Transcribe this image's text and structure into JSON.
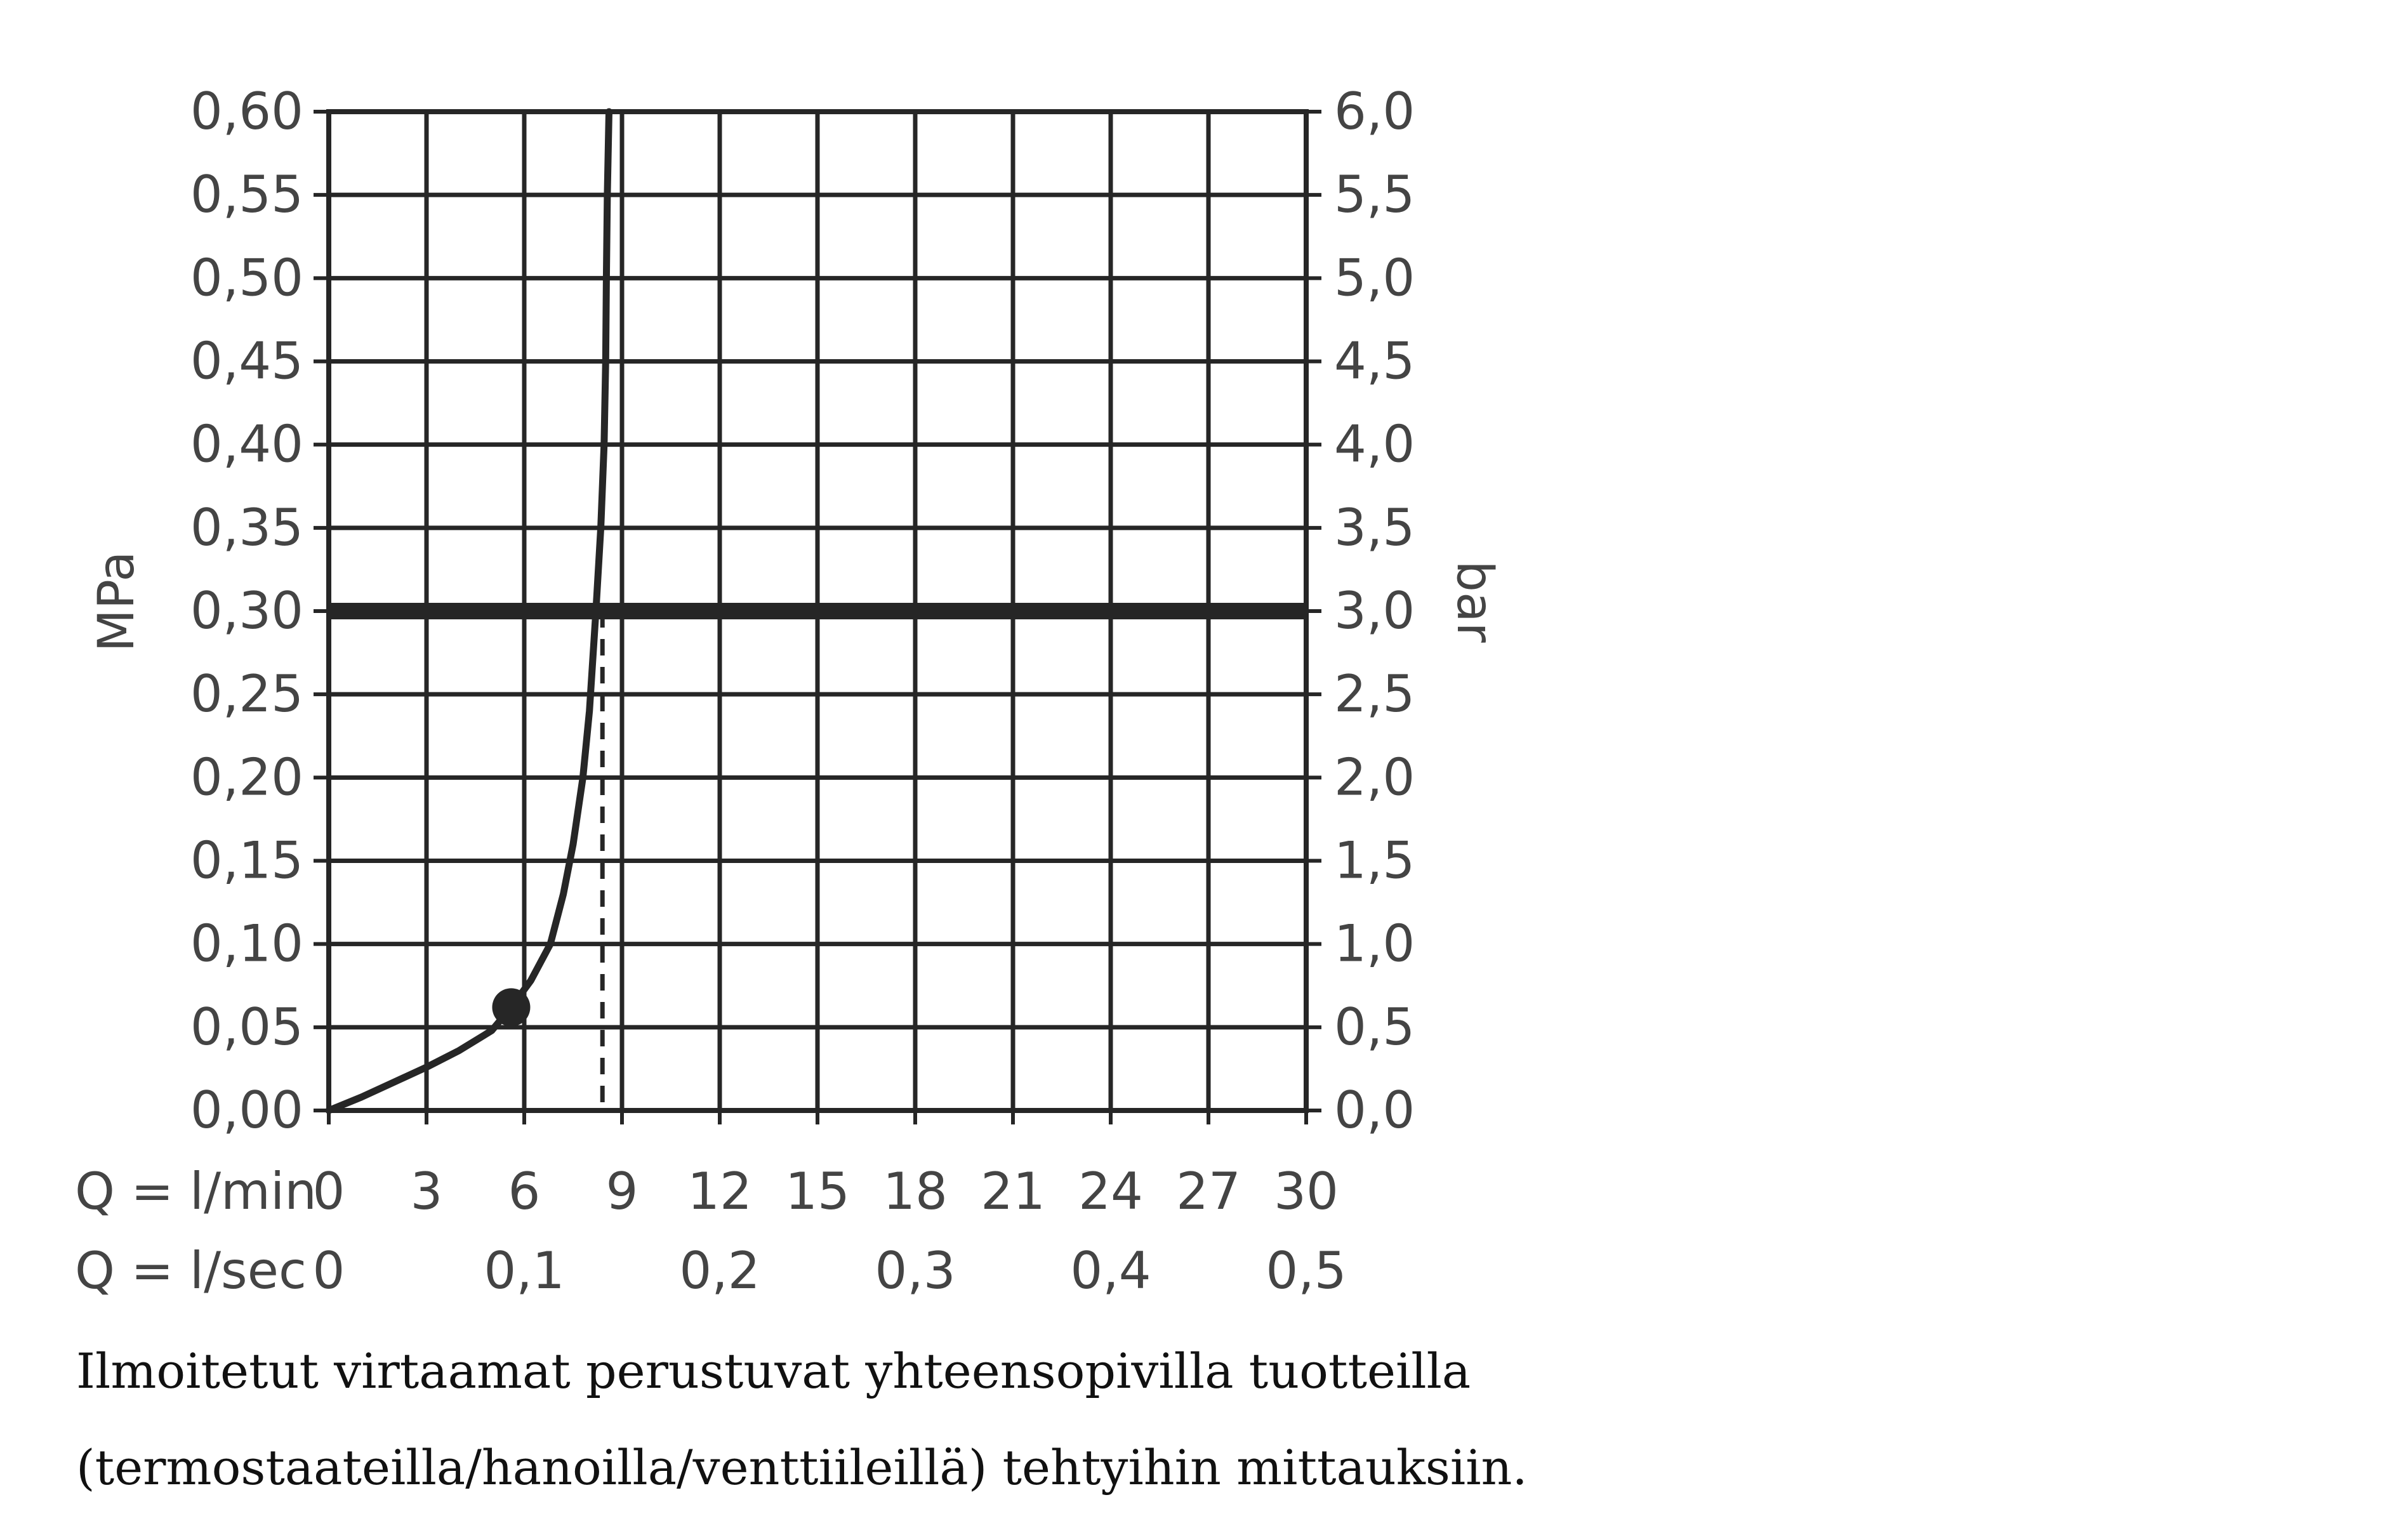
{
  "chart_data": {
    "type": "line",
    "ylabel_left": "MPa",
    "ylabel_right": "bar",
    "xlabel_min": "Q = l/min",
    "xlabel_sec": "Q = l/sec",
    "xlim": [
      0,
      30
    ],
    "ylim": [
      0,
      0.6
    ],
    "grid": true,
    "x_ticks_min": [
      "0",
      "3",
      "6",
      "9",
      "12",
      "15",
      "18",
      "21",
      "24",
      "27",
      "30"
    ],
    "x_ticks_sec": [
      {
        "value": 0,
        "label": "0"
      },
      {
        "value": 6,
        "label": "0,1"
      },
      {
        "value": 12,
        "label": "0,2"
      },
      {
        "value": 18,
        "label": "0,3"
      },
      {
        "value": 24,
        "label": "0,4"
      },
      {
        "value": 30,
        "label": "0,5"
      }
    ],
    "y_ticks_left": [
      "0,00",
      "0,05",
      "0,10",
      "0,15",
      "0,20",
      "0,25",
      "0,30",
      "0,35",
      "0,40",
      "0,45",
      "0,50",
      "0,55",
      "0,60"
    ],
    "y_ticks_right": [
      "0,0",
      "0,5",
      "1,0",
      "1,5",
      "2,0",
      "2,5",
      "3,0",
      "3,5",
      "4,0",
      "4,5",
      "5,0",
      "5,5",
      "6,0"
    ],
    "series": [
      {
        "x": [
          0,
          1,
          2,
          3,
          4,
          5,
          5.6,
          6.2,
          6.8,
          7.2,
          7.5,
          7.8,
          8.0,
          8.2,
          8.35,
          8.45,
          8.5,
          8.52,
          8.55,
          8.6
        ],
        "y": [
          0,
          0.008,
          0.017,
          0.026,
          0.036,
          0.048,
          0.062,
          0.078,
          0.1,
          0.13,
          0.16,
          0.2,
          0.24,
          0.3,
          0.35,
          0.4,
          0.45,
          0.5,
          0.55,
          0.6
        ]
      }
    ],
    "marker_point": {
      "x": 5.6,
      "y": 0.062
    },
    "reference_line_y": 0.3,
    "reference_line_x_dashed": 8.4,
    "colors": {
      "curve": "#262626",
      "grid": "#262626",
      "text": "#444444"
    }
  },
  "caption": "Ilmoitetut virtaamat perustuvat yhteensopivilla tuotteilla (termostaateilla/hanoilla/venttiileillä) tehtyihin mittauksiin."
}
